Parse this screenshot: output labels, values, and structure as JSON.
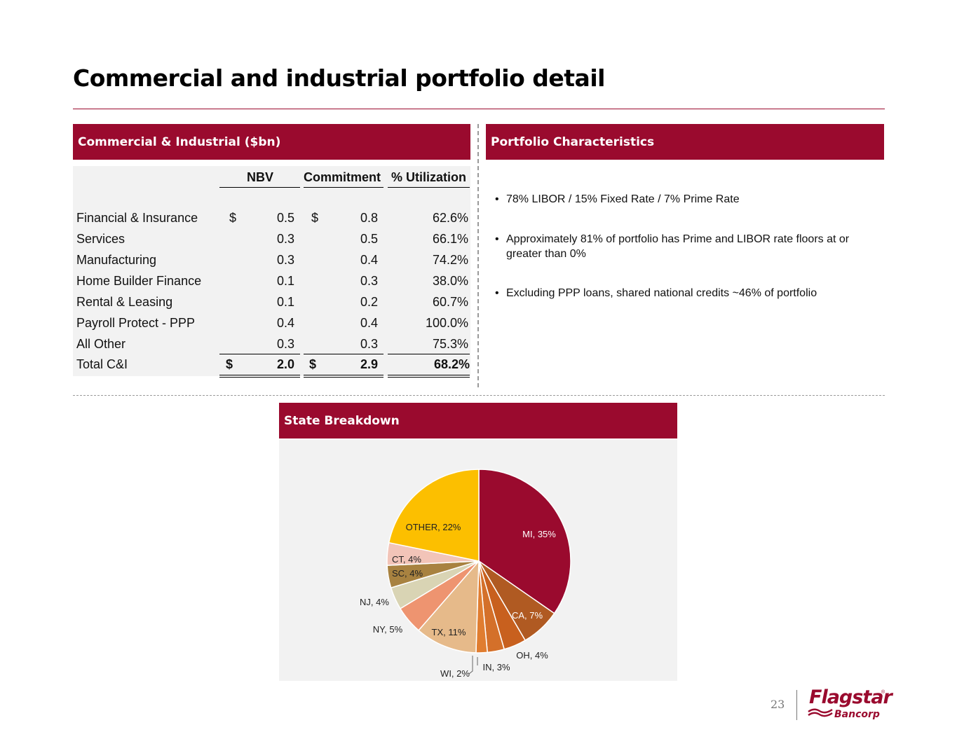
{
  "title": "Commercial and industrial portfolio detail",
  "ci_panel": {
    "header": "Commercial & Industrial ($bn)",
    "columns": [
      "NBV",
      "Commitment",
      "% Utilization"
    ],
    "currency_symbol": "$",
    "rows": [
      {
        "label": "Financial & Insurance",
        "nbv": "0.5",
        "commitment": "0.8",
        "utilization": "62.6%"
      },
      {
        "label": "Services",
        "nbv": "0.3",
        "commitment": "0.5",
        "utilization": "66.1%"
      },
      {
        "label": "Manufacturing",
        "nbv": "0.3",
        "commitment": "0.4",
        "utilization": "74.2%"
      },
      {
        "label": "Home Builder Finance",
        "nbv": "0.1",
        "commitment": "0.3",
        "utilization": "38.0%"
      },
      {
        "label": "Rental & Leasing",
        "nbv": "0.1",
        "commitment": "0.2",
        "utilization": "60.7%"
      },
      {
        "label": "Payroll Protect - PPP",
        "nbv": "0.4",
        "commitment": "0.4",
        "utilization": "100.0%"
      },
      {
        "label": "All Other",
        "nbv": "0.3",
        "commitment": "0.3",
        "utilization": "75.3%"
      }
    ],
    "total": {
      "label": "Total C&I",
      "nbv": "2.0",
      "commitment": "2.9",
      "utilization": "68.2%"
    }
  },
  "characteristics_panel": {
    "header": "Portfolio Characteristics",
    "bullets": [
      "78% LIBOR / 15% Fixed Rate / 7% Prime Rate",
      "Approximately 81% of portfolio has Prime and LIBOR rate floors at or greater than 0%",
      "Excluding PPP loans, shared national credits ~46% of portfolio"
    ]
  },
  "state_panel": {
    "header": "State Breakdown"
  },
  "chart_data": {
    "type": "pie",
    "title": "State Breakdown",
    "slices": [
      {
        "label": "MI",
        "value": 35,
        "text": "MI, 35%",
        "color": "#9a0a2e"
      },
      {
        "label": "CA",
        "value": 7,
        "text": "CA, 7%",
        "color": "#b05a22"
      },
      {
        "label": "OH",
        "value": 4,
        "text": "OH, 4%",
        "color": "#c8601e"
      },
      {
        "label": "IN",
        "value": 3,
        "text": "IN, 3%",
        "color": "#d4702a"
      },
      {
        "label": "WI",
        "value": 2,
        "text": "WI, 2%",
        "color": "#e07d30"
      },
      {
        "label": "TX",
        "value": 11,
        "text": "TX, 11%",
        "color": "#e6ba8a"
      },
      {
        "label": "NY",
        "value": 5,
        "text": "NY, 5%",
        "color": "#ee9470"
      },
      {
        "label": "NJ",
        "value": 4,
        "text": "NJ, 4%",
        "color": "#d9d4b4"
      },
      {
        "label": "SC",
        "value": 4,
        "text": "SC, 4%",
        "color": "#a88240"
      },
      {
        "label": "CT",
        "value": 4,
        "text": "CT, 4%",
        "color": "#f2c4b8"
      },
      {
        "label": "OTHER",
        "value": 22,
        "text": "OTHER, 22%",
        "color": "#fcbf00"
      }
    ]
  },
  "footer": {
    "page_number": "23",
    "logo_text": "Flagstar",
    "logo_sub": "Bancorp",
    "logo_reg": "®"
  }
}
